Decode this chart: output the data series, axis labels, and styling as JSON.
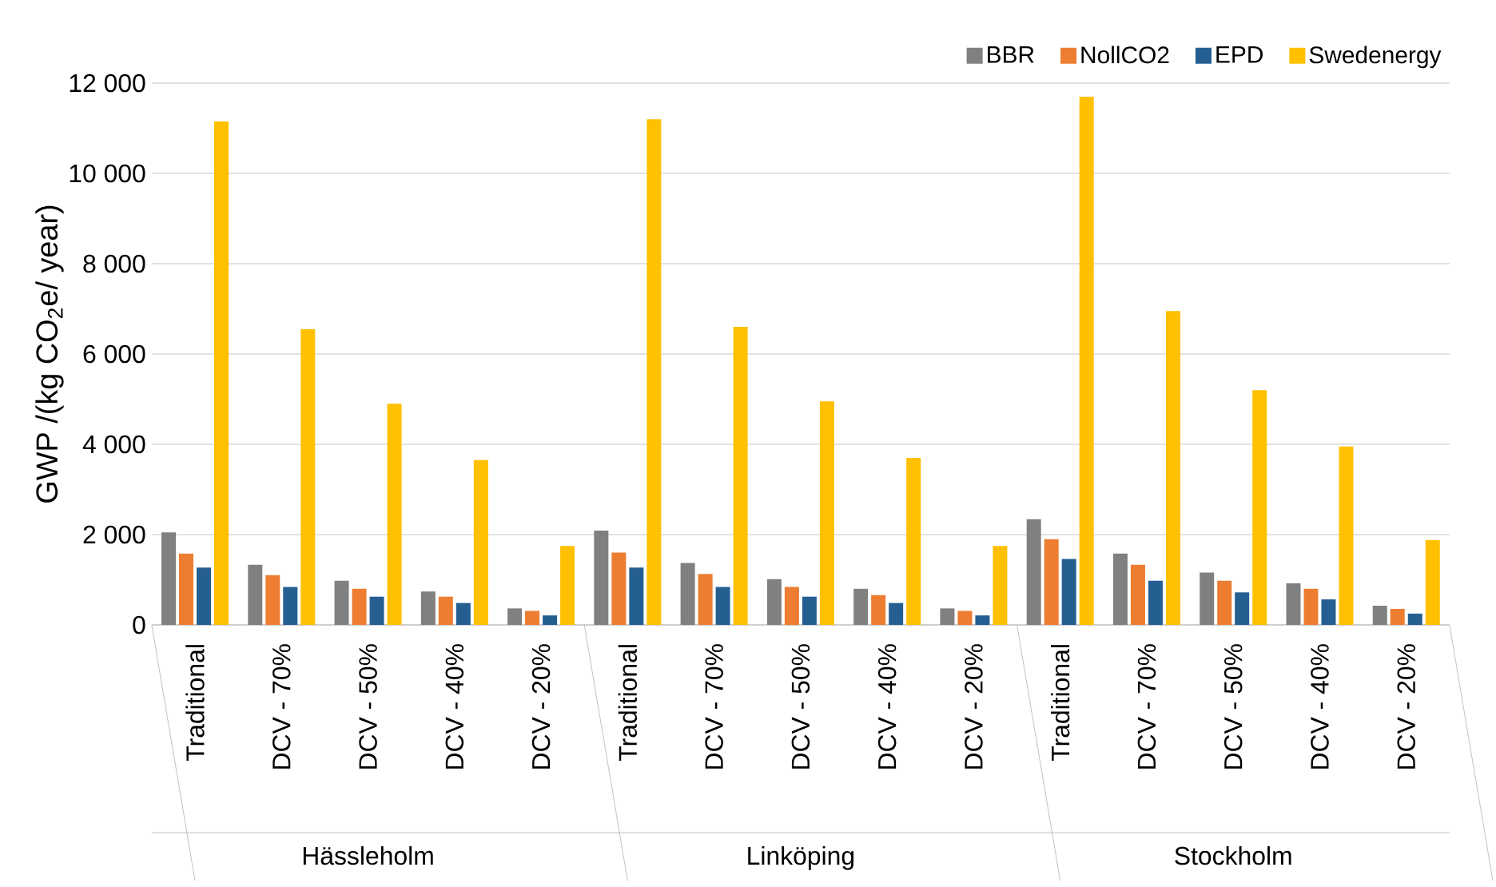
{
  "chart_data": {
    "type": "bar",
    "ylabel": "GWP /(kg CO$_{2}$e/ year)",
    "categories": [
      "Traditional",
      "DCV - 70%",
      "DCV - 50%",
      "DCV - 40%",
      "DCV - 20%",
      "Traditional",
      "DCV - 70%",
      "DCV - 50%",
      "DCV - 40%",
      "DCV - 20%",
      "Traditional",
      "DCV - 70%",
      "DCV - 50%",
      "DCV - 40%",
      "DCV - 20%"
    ],
    "annotations": [
      "Hässleholm",
      "Linköping",
      "Stockholm"
    ],
    "series": [
      {
        "name": "BBR",
        "color": "#808080",
        "values": [
          2050,
          1330,
          980,
          740,
          365,
          2090,
          1370,
          1015,
          800,
          365,
          2340,
          1580,
          1160,
          920,
          425
        ]
      },
      {
        "name": "NollCO2",
        "color": "#ed7d31",
        "values": [
          1580,
          1100,
          800,
          625,
          310,
          1600,
          1130,
          840,
          660,
          310,
          1900,
          1330,
          980,
          800,
          355
        ]
      },
      {
        "name": "EPD",
        "color": "#255e91",
        "values": [
          1270,
          840,
          625,
          485,
          210,
          1270,
          840,
          625,
          485,
          210,
          1460,
          980,
          720,
          565,
          250
        ]
      },
      {
        "name": "Swedenergy",
        "color": "#ffc000",
        "values": [
          11150,
          6550,
          4900,
          3650,
          1750,
          11200,
          6600,
          4950,
          3700,
          1750,
          11700,
          6950,
          5200,
          3950,
          1880
        ]
      }
    ],
    "ylim": [
      0,
      12000
    ],
    "yticks": [
      0,
      {
        "value": 2000,
        "label": "2 000"
      },
      {
        "value": 4000,
        "label": "4 000"
      },
      {
        "value": 6000,
        "label": "6 000"
      },
      {
        "value": 8000,
        "label": "8 000"
      },
      {
        "value": 10000,
        "label": "10 000"
      },
      {
        "value": 12000,
        "label": "12 000"
      }
    ],
    "grid": "y",
    "legend": "top right"
  }
}
